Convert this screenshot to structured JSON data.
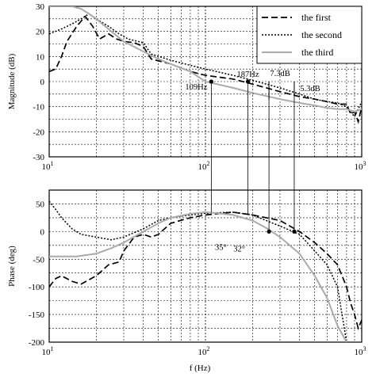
{
  "chart_data": [
    {
      "type": "line",
      "xscale": "log",
      "xlim": [
        10,
        1000
      ],
      "ylim": [
        -30,
        30
      ],
      "ylabel": "Magnitude (dB)",
      "xlabel": "",
      "grid": true,
      "yticks": [
        -30,
        -20,
        -10,
        0,
        10,
        20,
        30
      ],
      "xtick_labels": [
        {
          "base": "10",
          "exp": "1",
          "value": 10
        },
        {
          "base": "10",
          "exp": "2",
          "value": 100
        },
        {
          "base": "10",
          "exp": "3",
          "value": 1000
        }
      ],
      "legend": {
        "placement": "top-right",
        "entries": [
          {
            "name": "the first",
            "style": "dashed",
            "color": "#000000"
          },
          {
            "name": "the second",
            "style": "dotted",
            "color": "#000000"
          },
          {
            "name": "the third",
            "style": "solid",
            "color": "#aaaaaa"
          }
        ]
      },
      "series": [
        {
          "name": "the first",
          "x": [
            10,
            11,
            12,
            13,
            15,
            17,
            19,
            21,
            24,
            27,
            30,
            35,
            40,
            45,
            60,
            80,
            100,
            150,
            200,
            300,
            400,
            500,
            600,
            700,
            800,
            850,
            900,
            950,
            1000
          ],
          "y": [
            4,
            5,
            10,
            16,
            22,
            26,
            22,
            17,
            19,
            17,
            16,
            15.5,
            14,
            9,
            7,
            4,
            2.5,
            1,
            -1,
            -4,
            -6,
            -7,
            -8,
            -9,
            -9,
            -13,
            -12,
            -16,
            -10
          ]
        },
        {
          "name": "the second",
          "x": [
            10,
            12,
            14,
            16,
            18,
            20,
            24,
            28,
            32,
            40,
            45,
            60,
            80,
            100,
            150,
            200,
            300,
            400,
            500,
            600,
            700,
            800,
            900,
            1000
          ],
          "y": [
            19,
            21,
            23,
            25,
            27,
            25,
            22,
            19,
            17,
            15.5,
            11,
            8.5,
            6.5,
            5,
            2.5,
            0.5,
            -2.5,
            -5,
            -7,
            -8,
            -8.5,
            -10,
            -14,
            -8
          ]
        },
        {
          "name": "the third",
          "x": [
            10,
            14,
            16,
            18,
            20,
            25,
            30,
            40,
            50,
            60,
            80,
            100,
            150,
            200,
            300,
            400,
            500,
            600,
            700,
            800,
            900,
            1000
          ],
          "y": [
            30,
            30,
            29,
            27,
            25,
            20,
            16,
            12,
            9,
            7,
            4,
            0,
            -2.5,
            -4.5,
            -7,
            -8.5,
            -9.5,
            -10.5,
            -11,
            -11,
            -12,
            -11
          ]
        }
      ],
      "markers": [
        {
          "x": 109,
          "y": 0
        },
        {
          "x": 187,
          "y": 0
        }
      ],
      "annotations": [
        {
          "text": "109Hz",
          "x": 109,
          "y": 0
        },
        {
          "text": "187Hz",
          "x": 187,
          "y": 0
        },
        {
          "text": "7.3dB",
          "x": 255,
          "y": 0
        },
        {
          "text": "5.3dB",
          "x": 370,
          "y": 0
        }
      ]
    },
    {
      "type": "line",
      "xscale": "log",
      "xlim": [
        10,
        1000
      ],
      "ylim": [
        -200,
        75
      ],
      "ylabel": "Phase (deg)",
      "xlabel": "f (Hz)",
      "grid": true,
      "yticks": [
        -200,
        -150,
        -100,
        -50,
        0,
        50
      ],
      "xtick_labels": [
        {
          "base": "10",
          "exp": "1",
          "value": 10
        },
        {
          "base": "10",
          "exp": "2",
          "value": 100
        },
        {
          "base": "10",
          "exp": "3",
          "value": 1000
        }
      ],
      "series": [
        {
          "name": "the first",
          "x": [
            10,
            11,
            12,
            14,
            16,
            20,
            24,
            28,
            30,
            35,
            40,
            45,
            50,
            60,
            80,
            100,
            150,
            200,
            300,
            400,
            500,
            600,
            700,
            800,
            850,
            900,
            950,
            1000
          ],
          "y": [
            -100,
            -85,
            -80,
            -90,
            -95,
            -80,
            -60,
            -55,
            -35,
            -10,
            -5,
            -10,
            -5,
            15,
            25,
            30,
            35,
            30,
            20,
            0,
            -20,
            -40,
            -60,
            -100,
            -130,
            -150,
            -175,
            -160
          ]
        },
        {
          "name": "the second",
          "x": [
            10,
            11,
            12,
            14,
            16,
            20,
            25,
            30,
            40,
            50,
            60,
            80,
            100,
            150,
            200,
            300,
            400,
            500,
            600,
            700,
            800
          ],
          "y": [
            55,
            40,
            25,
            5,
            -5,
            -10,
            -15,
            -10,
            5,
            20,
            25,
            30,
            33,
            35,
            30,
            10,
            -5,
            -35,
            -60,
            -100,
            -200
          ]
        },
        {
          "name": "the third",
          "x": [
            10,
            15,
            20,
            25,
            30,
            40,
            50,
            60,
            80,
            100,
            120,
            150,
            200,
            250,
            300,
            400,
            500,
            600,
            700,
            800
          ],
          "y": [
            -45,
            -45,
            -40,
            -30,
            -20,
            0,
            15,
            25,
            32,
            35,
            33,
            30,
            20,
            5,
            -10,
            -40,
            -80,
            -120,
            -170,
            -200
          ]
        }
      ],
      "markers": [
        {
          "x": 255,
          "y": 0
        },
        {
          "x": 370,
          "y": 0
        }
      ],
      "annotations": [
        {
          "text": "35°",
          "x": 109,
          "y": 0
        },
        {
          "text": "32°",
          "x": 187,
          "y": 0
        }
      ]
    }
  ]
}
